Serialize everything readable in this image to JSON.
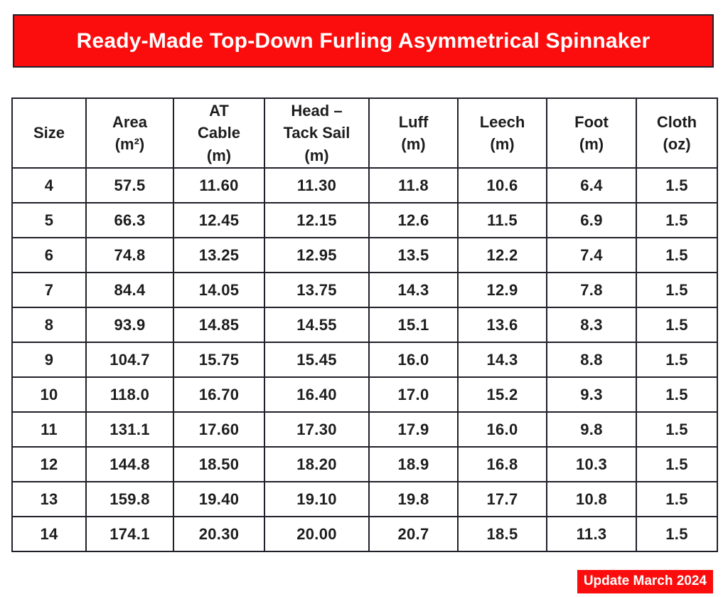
{
  "colors": {
    "accent_red": "#fb0d0d",
    "border_dark": "#20202a",
    "text_dark": "#1d1d1d",
    "banner_text": "#ffffff"
  },
  "banner": {
    "title": "Ready-Made Top-Down Furling Asymmetrical Spinnaker"
  },
  "table": {
    "headers": [
      "Size",
      "Area\n(m²)",
      "AT\nCable\n(m)",
      "Head –\nTack Sail\n(m)",
      "Luff\n(m)",
      "Leech\n(m)",
      "Foot\n(m)",
      "Cloth\n(oz)"
    ],
    "rows": [
      [
        "4",
        "57.5",
        "11.60",
        "11.30",
        "11.8",
        "10.6",
        "6.4",
        "1.5"
      ],
      [
        "5",
        "66.3",
        "12.45",
        "12.15",
        "12.6",
        "11.5",
        "6.9",
        "1.5"
      ],
      [
        "6",
        "74.8",
        "13.25",
        "12.95",
        "13.5",
        "12.2",
        "7.4",
        "1.5"
      ],
      [
        "7",
        "84.4",
        "14.05",
        "13.75",
        "14.3",
        "12.9",
        "7.8",
        "1.5"
      ],
      [
        "8",
        "93.9",
        "14.85",
        "14.55",
        "15.1",
        "13.6",
        "8.3",
        "1.5"
      ],
      [
        "9",
        "104.7",
        "15.75",
        "15.45",
        "16.0",
        "14.3",
        "8.8",
        "1.5"
      ],
      [
        "10",
        "118.0",
        "16.70",
        "16.40",
        "17.0",
        "15.2",
        "9.3",
        "1.5"
      ],
      [
        "11",
        "131.1",
        "17.60",
        "17.30",
        "17.9",
        "16.0",
        "9.8",
        "1.5"
      ],
      [
        "12",
        "144.8",
        "18.50",
        "18.20",
        "18.9",
        "16.8",
        "10.3",
        "1.5"
      ],
      [
        "13",
        "159.8",
        "19.40",
        "19.10",
        "19.8",
        "17.7",
        "10.8",
        "1.5"
      ],
      [
        "14",
        "174.1",
        "20.30",
        "20.00",
        "20.7",
        "18.5",
        "11.3",
        "1.5"
      ]
    ]
  },
  "footer": {
    "update_badge": "Update March 2024"
  }
}
